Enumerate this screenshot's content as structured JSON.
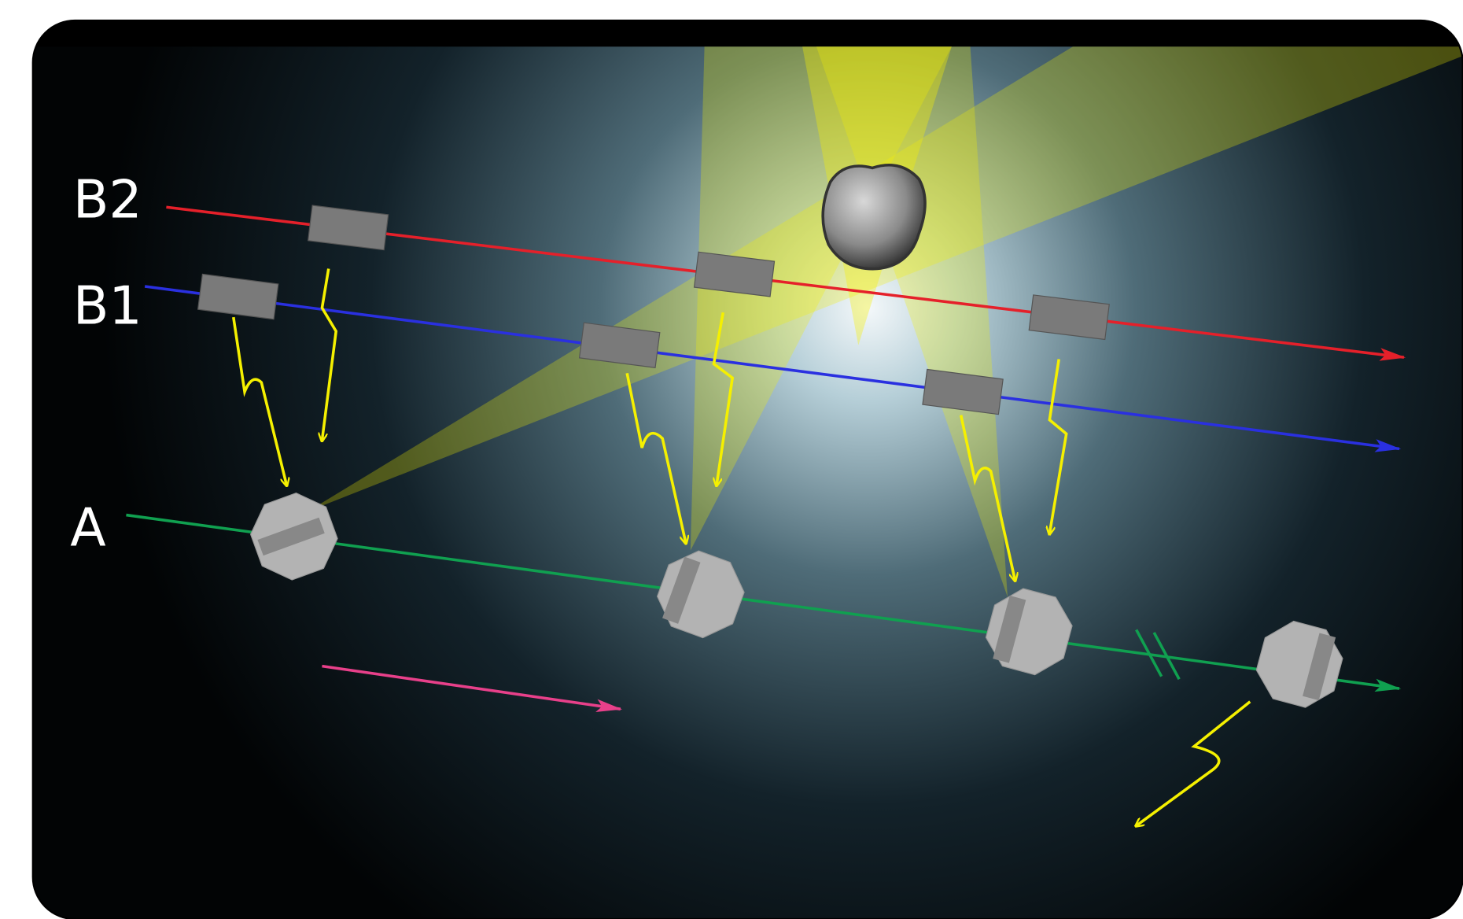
{
  "tracks": [
    {
      "label": "B2"
    },
    {
      "label": "B1"
    },
    {
      "label": "A"
    }
  ]
}
